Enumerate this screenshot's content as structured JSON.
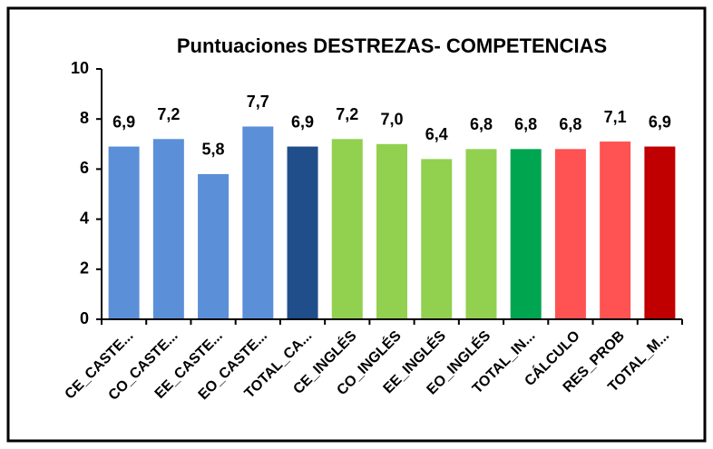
{
  "chart_data": {
    "type": "bar",
    "title": "Puntuaciones DESTREZAS- COMPETENCIAS",
    "categories": [
      "CE_CASTE...",
      "CO_CASTE...",
      "EE_CASTE...",
      "EO_CASTE...",
      "TOTAL_CA...",
      "CE_INGLÉS",
      "CO_INGLÉS",
      "EE_INGLÉS",
      "EO_INGLÉS",
      "TOTAL_IN...",
      "CÁLCULO",
      "RES_PROB",
      "TOTAL_M..."
    ],
    "values": [
      6.9,
      7.2,
      5.8,
      7.7,
      6.9,
      7.2,
      7.0,
      6.4,
      6.8,
      6.8,
      6.8,
      7.1,
      6.9
    ],
    "value_labels": [
      "6,9",
      "7,2",
      "5,8",
      "7,7",
      "6,9",
      "7,2",
      "7,0",
      "6,4",
      "6,8",
      "6,8",
      "6,8",
      "7,1",
      "6,9"
    ],
    "colors": [
      "#5b8fd8",
      "#5b8fd8",
      "#5b8fd8",
      "#5b8fd8",
      "#1f4e8a",
      "#92d050",
      "#92d050",
      "#92d050",
      "#92d050",
      "#00a550",
      "#ff5252",
      "#ff5252",
      "#c00000"
    ],
    "ylim": [
      0,
      10
    ],
    "yticks": [
      0,
      2,
      4,
      6,
      8,
      10
    ],
    "grid": false
  }
}
